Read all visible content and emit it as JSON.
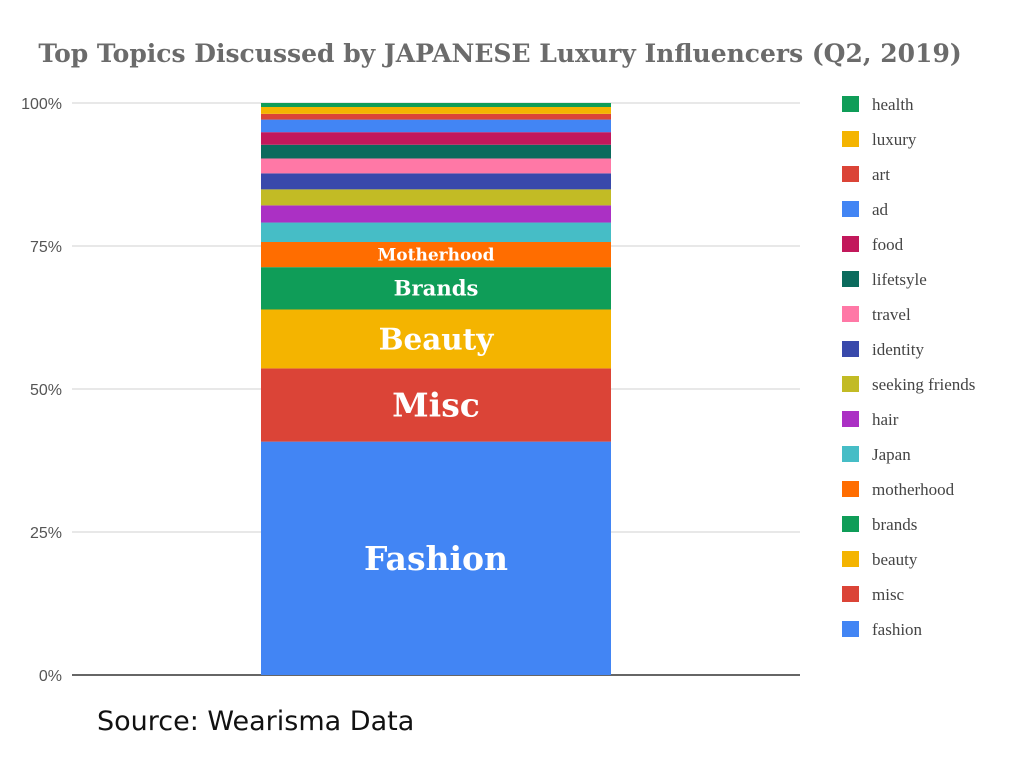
{
  "chart_data": {
    "type": "bar",
    "stacked": true,
    "title": "Top Topics Discussed by JAPANESE Luxury Influencers (Q2, 2019)",
    "y_ticks": [
      "0%",
      "25%",
      "50%",
      "75%",
      "100%"
    ],
    "ylim": [
      0,
      100
    ],
    "legend_position": "right",
    "source": "Source: Wearisma Data",
    "series": [
      {
        "name": "fashion",
        "value": 40.8,
        "color": "#4285f4",
        "label": "Fashion"
      },
      {
        "name": "misc",
        "value": 12.8,
        "color": "#db4437",
        "label": "Misc"
      },
      {
        "name": "beauty",
        "value": 10.3,
        "color": "#f4b400",
        "label": "Beauty"
      },
      {
        "name": "brands",
        "value": 7.4,
        "color": "#0f9d58",
        "label": "Brands"
      },
      {
        "name": "motherhood",
        "value": 4.4,
        "color": "#ff6d00",
        "label": "Motherhood"
      },
      {
        "name": "Japan",
        "value": 3.4,
        "color": "#46bdc6",
        "label": ""
      },
      {
        "name": "hair",
        "value": 3.0,
        "color": "#ab30c4",
        "label": ""
      },
      {
        "name": "seeking friends",
        "value": 2.8,
        "color": "#c2bb25",
        "label": ""
      },
      {
        "name": "identity",
        "value": 2.8,
        "color": "#3949ab",
        "label": ""
      },
      {
        "name": "travel",
        "value": 2.6,
        "color": "#ff78a6",
        "label": ""
      },
      {
        "name": "lifetsyle",
        "value": 2.4,
        "color": "#0b6b5d",
        "label": ""
      },
      {
        "name": "food",
        "value": 2.2,
        "color": "#c2185b",
        "label": ""
      },
      {
        "name": "ad",
        "value": 2.2,
        "color": "#4285f4",
        "label": ""
      },
      {
        "name": "art",
        "value": 1.0,
        "color": "#db4437",
        "label": ""
      },
      {
        "name": "luxury",
        "value": 1.2,
        "color": "#f4b400",
        "label": ""
      },
      {
        "name": "health",
        "value": 0.7,
        "color": "#0f9d58",
        "label": ""
      }
    ]
  }
}
